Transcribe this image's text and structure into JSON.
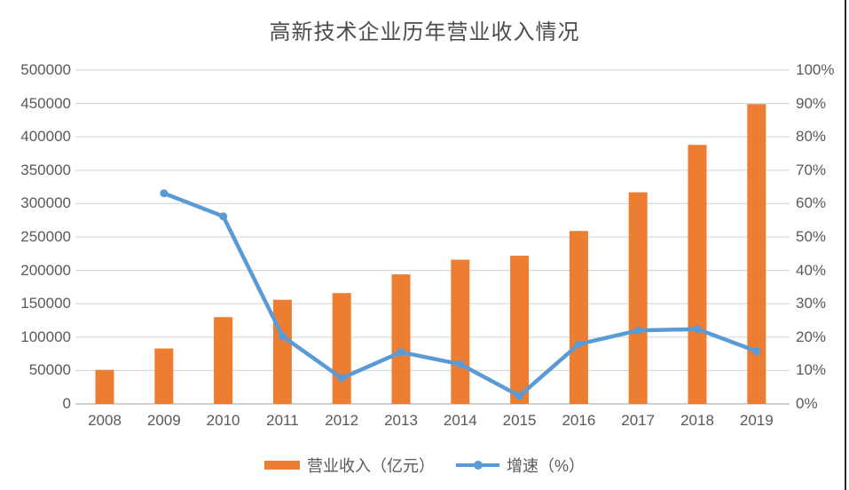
{
  "title": "高新技术企业历年营业收入情况",
  "colors": {
    "bar": "#ED7D31",
    "line": "#5B9BD5",
    "grid": "#D9D9D9",
    "axis": "#C0C0C0",
    "text": "#595959",
    "border": "#262626"
  },
  "legend": {
    "items": [
      {
        "label": "营业收入（亿元）",
        "type": "bar"
      },
      {
        "label": "增速（%）",
        "type": "line"
      }
    ]
  },
  "chart_data": {
    "type": "bar",
    "subtype": "bar+line combo, dual axis",
    "title": "高新技术企业历年营业收入情况",
    "categories": [
      "2008",
      "2009",
      "2010",
      "2011",
      "2012",
      "2013",
      "2014",
      "2015",
      "2016",
      "2017",
      "2018",
      "2019"
    ],
    "series": [
      {
        "name": "营业收入（亿元）",
        "type": "bar",
        "axis": "left",
        "color": "#ED7D31",
        "values": [
          51000,
          83000,
          130000,
          156000,
          166000,
          194000,
          216000,
          222000,
          259000,
          317000,
          388000,
          449000
        ]
      },
      {
        "name": "增速（%）",
        "type": "line",
        "axis": "right",
        "color": "#5B9BD5",
        "values": [
          null,
          63.1,
          56.2,
          20.3,
          7.7,
          15.5,
          11.9,
          2.4,
          17.9,
          22.0,
          22.4,
          15.8
        ]
      }
    ],
    "left_axis": {
      "min": 0,
      "max": 500000,
      "step": 50000,
      "ticks": [
        "0",
        "50000",
        "100000",
        "150000",
        "200000",
        "250000",
        "300000",
        "350000",
        "400000",
        "450000",
        "500000"
      ]
    },
    "right_axis": {
      "min": 0,
      "max": 100,
      "step": 10,
      "ticks": [
        "0%",
        "10%",
        "20%",
        "30%",
        "40%",
        "50%",
        "60%",
        "70%",
        "80%",
        "90%",
        "100%"
      ]
    },
    "grid": true,
    "legend_position": "bottom"
  }
}
